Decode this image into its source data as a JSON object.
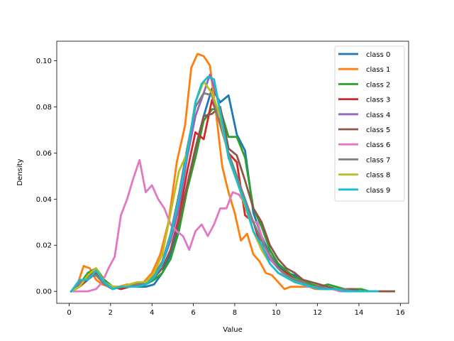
{
  "chart_data": {
    "type": "line",
    "title": "",
    "xlabel": "Value",
    "ylabel": "Density",
    "xlim": [
      -0.6,
      16.4
    ],
    "ylim": [
      -0.0052,
      0.1085
    ],
    "xticks": [
      0,
      2,
      4,
      6,
      8,
      10,
      12,
      14,
      16
    ],
    "yticks": [
      0.0,
      0.02,
      0.04,
      0.06,
      0.08,
      0.1
    ],
    "xtick_labels": [
      "0",
      "2",
      "4",
      "6",
      "8",
      "10",
      "12",
      "14",
      "16"
    ],
    "ytick_labels": [
      "0.00",
      "0.02",
      "0.04",
      "0.06",
      "0.08",
      "0.10"
    ],
    "grid": false,
    "legend_position": "top-right",
    "series": [
      {
        "name": "class 0",
        "color": "#1f77b4",
        "x": [
          0.1,
          0.5,
          0.9,
          1.3,
          1.7,
          2.1,
          2.5,
          2.9,
          3.3,
          3.7,
          4.1,
          4.5,
          4.9,
          5.3,
          5.7,
          6.1,
          6.5,
          6.9,
          7.3,
          7.7,
          8.1,
          8.5,
          8.9,
          9.3,
          9.7,
          10.1,
          10.5,
          10.9,
          11.3,
          11.7,
          12.1,
          12.5,
          12.9,
          13.3,
          13.7,
          14.1,
          14.5,
          14.9
        ],
        "y": [
          0.0,
          0.004,
          0.006,
          0.008,
          0.003,
          0.001,
          0.002,
          0.002,
          0.002,
          0.002,
          0.003,
          0.008,
          0.016,
          0.028,
          0.046,
          0.062,
          0.076,
          0.088,
          0.082,
          0.085,
          0.068,
          0.061,
          0.034,
          0.024,
          0.016,
          0.011,
          0.008,
          0.007,
          0.004,
          0.002,
          0.002,
          0.001,
          0.001,
          0.0,
          0.0,
          0.0,
          0.0,
          0.0
        ]
      },
      {
        "name": "class 1",
        "color": "#ff7f0e",
        "x": [
          0.1,
          0.4,
          0.7,
          1.0,
          1.3,
          1.6,
          2.0,
          2.4,
          2.8,
          3.2,
          3.6,
          4.0,
          4.4,
          4.8,
          5.2,
          5.6,
          5.9,
          6.2,
          6.5,
          6.8,
          7.1,
          7.4,
          7.7,
          8.0,
          8.3,
          8.6,
          8.9,
          9.2,
          9.5,
          9.8,
          10.1,
          10.4,
          10.7,
          11.0,
          11.3,
          11.6,
          11.9,
          12.3,
          12.7,
          13.2,
          13.7,
          14.2,
          14.7
        ],
        "y": [
          0.0,
          0.003,
          0.011,
          0.01,
          0.005,
          0.003,
          0.002,
          0.002,
          0.003,
          0.003,
          0.004,
          0.008,
          0.016,
          0.03,
          0.056,
          0.072,
          0.097,
          0.103,
          0.102,
          0.098,
          0.077,
          0.054,
          0.043,
          0.034,
          0.022,
          0.025,
          0.016,
          0.013,
          0.008,
          0.007,
          0.004,
          0.001,
          0.002,
          0.002,
          0.002,
          0.002,
          0.001,
          0.001,
          0.001,
          0.0,
          0.0,
          0.0,
          0.0
        ]
      },
      {
        "name": "class 2",
        "color": "#2ca02c",
        "x": [
          0.1,
          0.5,
          0.9,
          1.3,
          1.7,
          2.1,
          2.5,
          2.9,
          3.3,
          3.7,
          4.1,
          4.5,
          4.9,
          5.3,
          5.7,
          6.1,
          6.5,
          6.9,
          7.3,
          7.7,
          8.1,
          8.5,
          8.9,
          9.3,
          9.7,
          10.1,
          10.5,
          10.9,
          11.3,
          11.7,
          12.1,
          12.5,
          12.9,
          13.3,
          13.7,
          14.1,
          14.5,
          14.9,
          15.3,
          15.7
        ],
        "y": [
          0.0,
          0.003,
          0.008,
          0.01,
          0.005,
          0.002,
          0.001,
          0.002,
          0.002,
          0.003,
          0.005,
          0.008,
          0.014,
          0.026,
          0.044,
          0.058,
          0.074,
          0.079,
          0.079,
          0.067,
          0.067,
          0.058,
          0.036,
          0.028,
          0.018,
          0.012,
          0.009,
          0.006,
          0.005,
          0.003,
          0.002,
          0.003,
          0.002,
          0.001,
          0.001,
          0.001,
          0.0,
          0.0,
          0.0,
          0.0
        ]
      },
      {
        "name": "class 3",
        "color": "#d62728",
        "x": [
          0.1,
          0.5,
          0.9,
          1.3,
          1.7,
          2.1,
          2.5,
          2.9,
          3.3,
          3.7,
          4.1,
          4.5,
          4.9,
          5.3,
          5.7,
          6.1,
          6.5,
          6.9,
          7.3,
          7.7,
          8.1,
          8.5,
          8.9,
          9.3,
          9.7,
          10.1,
          10.5,
          10.9,
          11.3,
          11.7,
          12.1,
          12.5,
          12.9,
          13.3,
          13.7,
          14.1,
          14.5,
          14.9
        ],
        "y": [
          0.0,
          0.002,
          0.006,
          0.01,
          0.004,
          0.002,
          0.001,
          0.002,
          0.002,
          0.003,
          0.006,
          0.01,
          0.018,
          0.032,
          0.052,
          0.069,
          0.066,
          0.083,
          0.073,
          0.06,
          0.056,
          0.033,
          0.03,
          0.019,
          0.014,
          0.01,
          0.008,
          0.005,
          0.004,
          0.002,
          0.002,
          0.001,
          0.001,
          0.001,
          0.0,
          0.0,
          0.0,
          0.0
        ]
      },
      {
        "name": "class 4",
        "color": "#9467bd",
        "x": [
          0.1,
          0.5,
          0.9,
          1.3,
          1.7,
          2.1,
          2.5,
          2.9,
          3.3,
          3.7,
          4.1,
          4.5,
          4.9,
          5.3,
          5.7,
          6.1,
          6.5,
          6.8,
          7.1,
          7.4,
          7.7,
          8.1,
          8.5,
          8.9,
          9.3,
          9.7,
          10.1,
          10.5,
          10.9,
          11.3,
          11.7,
          12.1,
          12.5,
          12.9,
          13.3,
          13.7,
          14.1,
          14.5,
          14.9
        ],
        "y": [
          0.0,
          0.003,
          0.006,
          0.008,
          0.003,
          0.001,
          0.002,
          0.002,
          0.003,
          0.003,
          0.006,
          0.012,
          0.022,
          0.036,
          0.058,
          0.076,
          0.086,
          0.094,
          0.086,
          0.074,
          0.058,
          0.048,
          0.038,
          0.03,
          0.022,
          0.014,
          0.01,
          0.007,
          0.005,
          0.004,
          0.002,
          0.002,
          0.001,
          0.001,
          0.001,
          0.0,
          0.0,
          0.0,
          0.0
        ]
      },
      {
        "name": "class 5",
        "color": "#8c564b",
        "x": [
          0.1,
          0.5,
          0.9,
          1.3,
          1.7,
          2.1,
          2.5,
          2.9,
          3.3,
          3.7,
          4.1,
          4.5,
          4.9,
          5.3,
          5.7,
          6.1,
          6.5,
          6.9,
          7.3,
          7.7,
          8.1,
          8.5,
          8.9,
          9.3,
          9.7,
          10.1,
          10.5,
          10.9,
          11.3,
          11.7,
          12.1,
          12.5,
          12.9,
          13.3,
          13.7,
          14.1,
          14.5,
          14.9,
          15.3,
          15.7
        ],
        "y": [
          0.0,
          0.002,
          0.005,
          0.008,
          0.004,
          0.002,
          0.002,
          0.002,
          0.003,
          0.004,
          0.006,
          0.01,
          0.018,
          0.03,
          0.046,
          0.062,
          0.076,
          0.077,
          0.08,
          0.062,
          0.059,
          0.048,
          0.036,
          0.03,
          0.02,
          0.014,
          0.01,
          0.008,
          0.005,
          0.004,
          0.003,
          0.002,
          0.001,
          0.001,
          0.001,
          0.0,
          0.0,
          0.0,
          0.0,
          0.0
        ]
      },
      {
        "name": "class 6",
        "color": "#e377c2",
        "x": [
          0.1,
          0.5,
          0.9,
          1.3,
          1.6,
          1.9,
          2.2,
          2.5,
          2.8,
          3.1,
          3.4,
          3.7,
          4.0,
          4.3,
          4.6,
          4.9,
          5.2,
          5.5,
          5.8,
          6.1,
          6.4,
          6.7,
          7.0,
          7.3,
          7.6,
          7.9,
          8.2,
          8.5,
          8.8,
          9.1,
          9.5,
          9.9,
          10.3,
          10.7,
          11.1,
          11.5,
          11.9,
          12.3,
          12.7,
          13.1,
          13.5
        ],
        "y": [
          0.0,
          0.0,
          0.0,
          0.001,
          0.004,
          0.01,
          0.015,
          0.033,
          0.04,
          0.049,
          0.057,
          0.043,
          0.046,
          0.04,
          0.036,
          0.029,
          0.026,
          0.024,
          0.018,
          0.026,
          0.029,
          0.024,
          0.029,
          0.036,
          0.036,
          0.043,
          0.042,
          0.038,
          0.03,
          0.03,
          0.018,
          0.012,
          0.008,
          0.006,
          0.004,
          0.002,
          0.002,
          0.001,
          0.001,
          0.0,
          0.0
        ]
      },
      {
        "name": "class 7",
        "color": "#7f7f7f",
        "x": [
          0.1,
          0.5,
          0.9,
          1.3,
          1.7,
          2.1,
          2.5,
          2.9,
          3.3,
          3.7,
          4.1,
          4.5,
          4.9,
          5.3,
          5.7,
          6.1,
          6.5,
          6.9,
          7.3,
          7.7,
          8.1,
          8.5,
          8.9,
          9.3,
          9.7,
          10.1,
          10.5,
          10.9,
          11.3,
          11.7,
          12.1,
          12.5,
          12.9,
          13.3,
          13.7,
          14.1,
          14.5,
          14.9
        ],
        "y": [
          0.0,
          0.004,
          0.006,
          0.007,
          0.003,
          0.001,
          0.002,
          0.002,
          0.003,
          0.004,
          0.007,
          0.013,
          0.025,
          0.042,
          0.062,
          0.08,
          0.086,
          0.085,
          0.072,
          0.06,
          0.05,
          0.04,
          0.03,
          0.022,
          0.016,
          0.01,
          0.007,
          0.005,
          0.004,
          0.002,
          0.002,
          0.001,
          0.001,
          0.001,
          0.0,
          0.0,
          0.0,
          0.0
        ]
      },
      {
        "name": "class 8",
        "color": "#bcbd22",
        "x": [
          0.1,
          0.5,
          0.9,
          1.3,
          1.7,
          2.1,
          2.5,
          2.9,
          3.3,
          3.7,
          4.1,
          4.5,
          4.9,
          5.3,
          5.7,
          6.1,
          6.5,
          6.9,
          7.3,
          7.7,
          8.1,
          8.5,
          8.9,
          9.3,
          9.7,
          10.1,
          10.5,
          10.9,
          11.3,
          11.7,
          12.1,
          12.5,
          12.9,
          13.3,
          13.7,
          14.1,
          14.5,
          14.9
        ],
        "y": [
          0.0,
          0.002,
          0.007,
          0.01,
          0.004,
          0.002,
          0.002,
          0.003,
          0.004,
          0.004,
          0.008,
          0.016,
          0.034,
          0.052,
          0.06,
          0.082,
          0.091,
          0.086,
          0.076,
          0.058,
          0.048,
          0.037,
          0.026,
          0.018,
          0.012,
          0.008,
          0.006,
          0.004,
          0.003,
          0.002,
          0.001,
          0.001,
          0.001,
          0.0,
          0.0,
          0.0,
          0.0,
          0.0
        ]
      },
      {
        "name": "class 9",
        "color": "#17becf",
        "x": [
          0.1,
          0.5,
          0.9,
          1.3,
          1.7,
          2.1,
          2.5,
          2.9,
          3.3,
          3.7,
          4.1,
          4.5,
          4.9,
          5.3,
          5.7,
          6.1,
          6.4,
          6.7,
          7.0,
          7.3,
          7.7,
          8.1,
          8.5,
          8.9,
          9.3,
          9.7,
          10.1,
          10.5,
          10.9,
          11.3,
          11.7,
          12.1,
          12.5,
          12.9,
          13.3,
          13.7,
          14.1,
          14.5,
          14.9
        ],
        "y": [
          0.0,
          0.005,
          0.005,
          0.009,
          0.004,
          0.001,
          0.002,
          0.002,
          0.002,
          0.003,
          0.006,
          0.012,
          0.024,
          0.04,
          0.06,
          0.082,
          0.09,
          0.093,
          0.092,
          0.078,
          0.058,
          0.048,
          0.038,
          0.026,
          0.02,
          0.012,
          0.008,
          0.006,
          0.004,
          0.003,
          0.002,
          0.001,
          0.001,
          0.001,
          0.0,
          0.0,
          0.0,
          0.0,
          0.0
        ]
      }
    ]
  }
}
